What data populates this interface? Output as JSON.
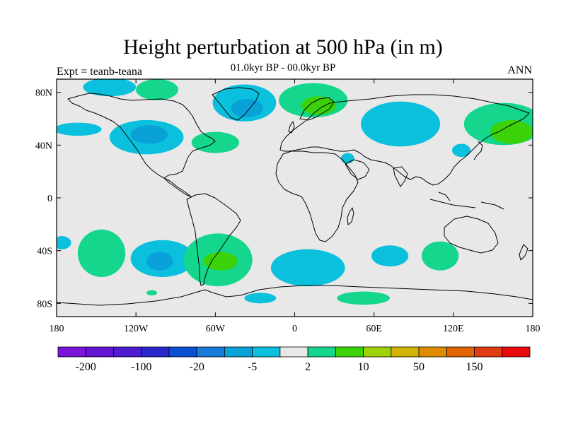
{
  "title": "Height perturbation at 500 hPa (in m)",
  "subtitle": "01.0kyr BP - 00.0kyr BP",
  "left_label": "Expt = teanb-teana",
  "right_label": "ANN",
  "chart_data": {
    "type": "heatmap",
    "projection": "cylindrical-equidistant",
    "title": "Height perturbation at 500 hPa (in m)",
    "subtitle": "01.0kyr BP - 00.0kyr BP",
    "xlim": [
      -180,
      180
    ],
    "ylim": [
      -90,
      90
    ],
    "x_ticks": [
      {
        "value": -180,
        "label": "180"
      },
      {
        "value": -120,
        "label": "120W"
      },
      {
        "value": -60,
        "label": "60W"
      },
      {
        "value": 0,
        "label": "0"
      },
      {
        "value": 60,
        "label": "60E"
      },
      {
        "value": 120,
        "label": "120E"
      },
      {
        "value": 180,
        "label": "180"
      }
    ],
    "y_ticks": [
      {
        "value": 80,
        "label": "80N"
      },
      {
        "value": 40,
        "label": "40N"
      },
      {
        "value": 0,
        "label": "0"
      },
      {
        "value": -40,
        "label": "40S"
      },
      {
        "value": -80,
        "label": "80S"
      }
    ],
    "colorbar": {
      "colors": [
        "#7a14d6",
        "#6414d2",
        "#4b1cd0",
        "#2828cc",
        "#0a50d4",
        "#1a7ad8",
        "#0aa0d8",
        "#0ac0dc",
        "#e8e8e8",
        "#14d68c",
        "#3cd20a",
        "#a0d20a",
        "#d2b400",
        "#e08c00",
        "#e06400",
        "#e03c14",
        "#e80a0a"
      ],
      "labels": [
        {
          "text": "-200",
          "boundary": 1
        },
        {
          "text": "-100",
          "boundary": 3
        },
        {
          "text": "-20",
          "boundary": 5
        },
        {
          "text": "-5",
          "boundary": 7
        },
        {
          "text": "2",
          "boundary": 9
        },
        {
          "text": "10",
          "boundary": 11
        },
        {
          "text": "50",
          "boundary": 13
        },
        {
          "text": "150",
          "boundary": 15
        }
      ]
    },
    "colors": {
      "background": "#e8e8e8",
      "neg_light": "#0ac0dc",
      "neg_mid": "#0aa0d8",
      "pos_light": "#14d68c",
      "pos_mid": "#3cd20a"
    },
    "regions": [
      {
        "level": "neg_light",
        "lon": -140,
        "lat": 84,
        "rlon": 20,
        "rlat": 7
      },
      {
        "level": "neg_light",
        "lon": -164,
        "lat": 52,
        "rlon": 18,
        "rlat": 5
      },
      {
        "level": "neg_light",
        "lon": -112,
        "lat": 46,
        "rlon": 28,
        "rlat": 13
      },
      {
        "level": "neg_mid",
        "lon": -110,
        "lat": 48,
        "rlon": 14,
        "rlat": 7
      },
      {
        "level": "pos_light",
        "lon": -104,
        "lat": 82,
        "rlon": 16,
        "rlat": 8
      },
      {
        "level": "pos_light",
        "lon": -60,
        "lat": 42,
        "rlon": 18,
        "rlat": 8
      },
      {
        "level": "neg_light",
        "lon": -38,
        "lat": 72,
        "rlon": 24,
        "rlat": 14
      },
      {
        "level": "neg_mid",
        "lon": -36,
        "lat": 68,
        "rlon": 12,
        "rlat": 7
      },
      {
        "level": "pos_light",
        "lon": 14,
        "lat": 74,
        "rlon": 26,
        "rlat": 13
      },
      {
        "level": "pos_mid",
        "lon": 18,
        "lat": 70,
        "rlon": 13,
        "rlat": 7
      },
      {
        "level": "neg_light",
        "lon": 80,
        "lat": 56,
        "rlon": 30,
        "rlat": 17
      },
      {
        "level": "pos_light",
        "lon": 158,
        "lat": 56,
        "rlon": 30,
        "rlat": 16
      },
      {
        "level": "pos_mid",
        "lon": 164,
        "lat": 50,
        "rlon": 16,
        "rlat": 9
      },
      {
        "level": "neg_light",
        "lon": 126,
        "lat": 36,
        "rlon": 7,
        "rlat": 5
      },
      {
        "level": "neg_light",
        "lon": 40,
        "lat": 30,
        "rlon": 5,
        "rlat": 4
      },
      {
        "level": "neg_light",
        "lon": -176,
        "lat": -34,
        "rlon": 7,
        "rlat": 5
      },
      {
        "level": "pos_light",
        "lon": -146,
        "lat": -42,
        "rlon": 18,
        "rlat": 18
      },
      {
        "level": "neg_light",
        "lon": -100,
        "lat": -46,
        "rlon": 24,
        "rlat": 14
      },
      {
        "level": "neg_mid",
        "lon": -102,
        "lat": -48,
        "rlon": 10,
        "rlat": 7
      },
      {
        "level": "pos_light",
        "lon": -58,
        "lat": -47,
        "rlon": 26,
        "rlat": 20
      },
      {
        "level": "pos_mid",
        "lon": -56,
        "lat": -48,
        "rlon": 13,
        "rlat": 7
      },
      {
        "level": "neg_light",
        "lon": 10,
        "lat": -53,
        "rlon": 28,
        "rlat": 14
      },
      {
        "level": "neg_light",
        "lon": 72,
        "lat": -44,
        "rlon": 14,
        "rlat": 8
      },
      {
        "level": "pos_light",
        "lon": 110,
        "lat": -44,
        "rlon": 14,
        "rlat": 11
      },
      {
        "level": "pos_light",
        "lon": 52,
        "lat": -76,
        "rlon": 20,
        "rlat": 5
      },
      {
        "level": "neg_light",
        "lon": -26,
        "lat": -76,
        "rlon": 12,
        "rlat": 4
      },
      {
        "level": "pos_light",
        "lon": -108,
        "lat": -72,
        "rlon": 4,
        "rlat": 2
      }
    ]
  }
}
